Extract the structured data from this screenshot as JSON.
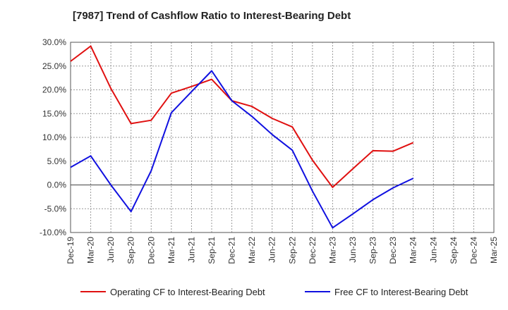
{
  "chart_data": {
    "type": "line",
    "title": "[7987]  Trend of Cashflow Ratio to Interest-Bearing Debt",
    "xlabel": "",
    "ylabel": "",
    "ylim": [
      -10,
      30
    ],
    "y_ticks": [
      "30.0%",
      "25.0%",
      "20.0%",
      "15.0%",
      "10.0%",
      "5.0%",
      "0.0%",
      "-5.0%",
      "-10.0%"
    ],
    "y_tick_values": [
      30,
      25,
      20,
      15,
      10,
      5,
      0,
      -5,
      -10
    ],
    "categories": [
      "Dec-19",
      "Mar-20",
      "Jun-20",
      "Sep-20",
      "Dec-20",
      "Mar-21",
      "Jun-21",
      "Sep-21",
      "Dec-21",
      "Mar-22",
      "Jun-22",
      "Sep-22",
      "Dec-22",
      "Mar-23",
      "Jun-23",
      "Sep-23",
      "Dec-23",
      "Mar-24",
      "Jun-24",
      "Sep-24",
      "Dec-24",
      "Mar-25"
    ],
    "grid": true,
    "legend_position": "bottom",
    "series": [
      {
        "name": "Operating CF to Interest-Bearing Debt",
        "color": "#e01010",
        "values": [
          26.0,
          29.2,
          20.3,
          12.9,
          13.6,
          19.3,
          20.7,
          22.2,
          17.7,
          16.5,
          14.0,
          12.2,
          5.2,
          -0.5,
          3.4,
          7.2,
          7.1,
          8.9,
          null,
          null,
          null,
          null
        ]
      },
      {
        "name": "Free CF to Interest-Bearing Debt",
        "color": "#1010e0",
        "values": [
          3.7,
          6.1,
          0.0,
          -5.6,
          3.0,
          15.2,
          19.6,
          24.0,
          17.7,
          14.4,
          10.6,
          7.3,
          -1.3,
          -9.0,
          -6.1,
          -3.1,
          -0.6,
          1.4,
          null,
          null,
          null,
          null
        ]
      }
    ]
  }
}
